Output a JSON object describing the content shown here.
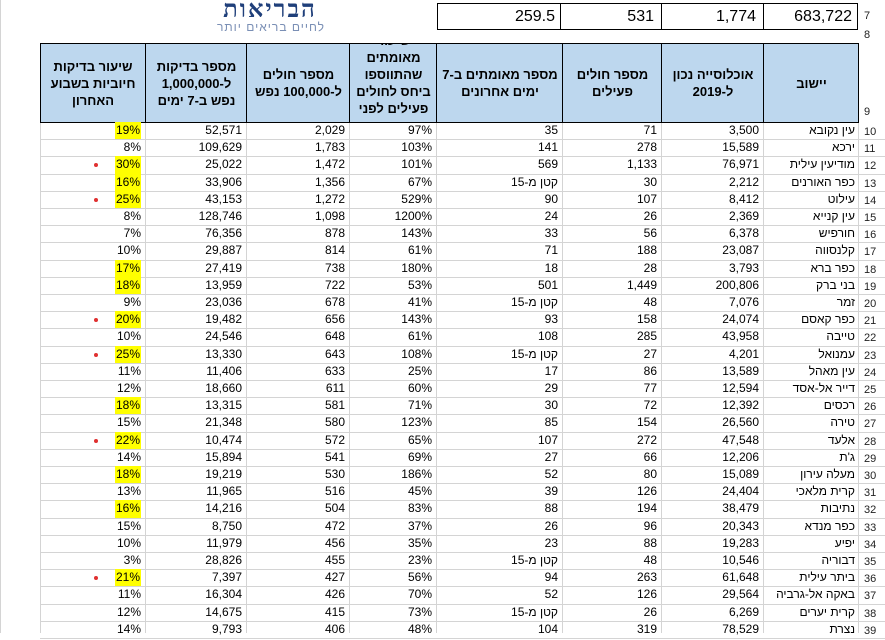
{
  "logo": {
    "title": "הבריאות",
    "subtitle": "לחיים בריאים יותר"
  },
  "top_row": {
    "row_num": "7",
    "values": [
      "683,722",
      "1,774",
      "531",
      "259.5"
    ]
  },
  "row8_num": "8",
  "header_row_num": "9",
  "headers": [
    "יישוב",
    "אוכלוסייה נכון ל-2019",
    "מספר חולים פעילים",
    "מספר מאומתים ב-7 ימים אחרונים",
    "שיעור מאומתים שהתווספו ביחס לחולים פעילים לפני שבוע",
    "מספר חולים ל-100,000 נפש",
    "מספר בדיקות ל-1,000,000 נפש ב-7 ימים",
    "שיעור בדיקות חיוביות בשבוע האחרון"
  ],
  "highlight_color": "#ffff00",
  "rows": [
    {
      "n": "10",
      "town": "עין נקובא",
      "pop": "3,500",
      "active": "71",
      "new7": "35",
      "rate": "97%",
      "per100k": "2,029",
      "tests": "52,571",
      "pos": "19%",
      "hl": true,
      "dot": false
    },
    {
      "n": "11",
      "town": "ירכא",
      "pop": "15,589",
      "active": "278",
      "new7": "141",
      "rate": "103%",
      "per100k": "1,783",
      "tests": "109,629",
      "pos": "8%",
      "hl": false,
      "dot": false
    },
    {
      "n": "12",
      "town": "מודיעין עילית",
      "pop": "76,971",
      "active": "1,133",
      "new7": "569",
      "rate": "101%",
      "per100k": "1,472",
      "tests": "25,022",
      "pos": "30%",
      "hl": true,
      "dot": true
    },
    {
      "n": "13",
      "town": "כפר האורנים",
      "pop": "2,212",
      "active": "30",
      "new7": "קטן מ-15",
      "rate": "67%",
      "per100k": "1,356",
      "tests": "33,906",
      "pos": "16%",
      "hl": true,
      "dot": false
    },
    {
      "n": "14",
      "town": "עילוט",
      "pop": "8,412",
      "active": "107",
      "new7": "90",
      "rate": "529%",
      "per100k": "1,272",
      "tests": "43,153",
      "pos": "25%",
      "hl": true,
      "dot": true
    },
    {
      "n": "15",
      "town": "עין קנייא",
      "pop": "2,369",
      "active": "26",
      "new7": "24",
      "rate": "1200%",
      "per100k": "1,098",
      "tests": "128,746",
      "pos": "8%",
      "hl": false,
      "dot": false
    },
    {
      "n": "16",
      "town": "חורפיש",
      "pop": "6,378",
      "active": "56",
      "new7": "33",
      "rate": "143%",
      "per100k": "878",
      "tests": "76,356",
      "pos": "7%",
      "hl": false,
      "dot": false
    },
    {
      "n": "17",
      "town": "קלנסווה",
      "pop": "23,087",
      "active": "188",
      "new7": "71",
      "rate": "61%",
      "per100k": "814",
      "tests": "29,887",
      "pos": "10%",
      "hl": false,
      "dot": false
    },
    {
      "n": "18",
      "town": "כפר ברא",
      "pop": "3,793",
      "active": "28",
      "new7": "18",
      "rate": "180%",
      "per100k": "738",
      "tests": "27,419",
      "pos": "17%",
      "hl": true,
      "dot": false
    },
    {
      "n": "19",
      "town": "בני ברק",
      "pop": "200,806",
      "active": "1,449",
      "new7": "501",
      "rate": "53%",
      "per100k": "722",
      "tests": "13,959",
      "pos": "18%",
      "hl": true,
      "dot": false
    },
    {
      "n": "20",
      "town": "זמר",
      "pop": "7,076",
      "active": "48",
      "new7": "קטן מ-15",
      "rate": "41%",
      "per100k": "678",
      "tests": "23,036",
      "pos": "9%",
      "hl": false,
      "dot": false
    },
    {
      "n": "21",
      "town": "כפר קאסם",
      "pop": "24,074",
      "active": "158",
      "new7": "93",
      "rate": "143%",
      "per100k": "656",
      "tests": "19,482",
      "pos": "20%",
      "hl": true,
      "dot": true
    },
    {
      "n": "22",
      "town": "טייבה",
      "pop": "43,958",
      "active": "285",
      "new7": "108",
      "rate": "61%",
      "per100k": "648",
      "tests": "24,546",
      "pos": "10%",
      "hl": false,
      "dot": false
    },
    {
      "n": "23",
      "town": "עמנואל",
      "pop": "4,201",
      "active": "27",
      "new7": "קטן מ-15",
      "rate": "108%",
      "per100k": "643",
      "tests": "13,330",
      "pos": "25%",
      "hl": true,
      "dot": true
    },
    {
      "n": "24",
      "town": "עין מאהל",
      "pop": "13,589",
      "active": "86",
      "new7": "17",
      "rate": "25%",
      "per100k": "633",
      "tests": "11,406",
      "pos": "11%",
      "hl": false,
      "dot": false
    },
    {
      "n": "25",
      "town": "דייר אל-אסד",
      "pop": "12,594",
      "active": "77",
      "new7": "29",
      "rate": "60%",
      "per100k": "611",
      "tests": "18,660",
      "pos": "12%",
      "hl": false,
      "dot": false
    },
    {
      "n": "26",
      "town": "רכסים",
      "pop": "12,392",
      "active": "72",
      "new7": "30",
      "rate": "71%",
      "per100k": "581",
      "tests": "13,315",
      "pos": "18%",
      "hl": true,
      "dot": false
    },
    {
      "n": "27",
      "town": "טירה",
      "pop": "26,560",
      "active": "154",
      "new7": "85",
      "rate": "123%",
      "per100k": "580",
      "tests": "21,348",
      "pos": "15%",
      "hl": false,
      "dot": false
    },
    {
      "n": "28",
      "town": "אלעד",
      "pop": "47,548",
      "active": "272",
      "new7": "107",
      "rate": "65%",
      "per100k": "572",
      "tests": "10,474",
      "pos": "22%",
      "hl": true,
      "dot": true
    },
    {
      "n": "29",
      "town": "ג'ת",
      "pop": "12,206",
      "active": "66",
      "new7": "27",
      "rate": "69%",
      "per100k": "541",
      "tests": "15,894",
      "pos": "14%",
      "hl": false,
      "dot": false
    },
    {
      "n": "30",
      "town": "מעלה עירון",
      "pop": "15,089",
      "active": "80",
      "new7": "52",
      "rate": "186%",
      "per100k": "530",
      "tests": "19,219",
      "pos": "18%",
      "hl": true,
      "dot": false
    },
    {
      "n": "31",
      "town": "קרית מלאכי",
      "pop": "24,404",
      "active": "126",
      "new7": "39",
      "rate": "45%",
      "per100k": "516",
      "tests": "11,965",
      "pos": "13%",
      "hl": false,
      "dot": false
    },
    {
      "n": "32",
      "town": "נתיבות",
      "pop": "38,479",
      "active": "194",
      "new7": "88",
      "rate": "83%",
      "per100k": "504",
      "tests": "14,216",
      "pos": "16%",
      "hl": true,
      "dot": false
    },
    {
      "n": "33",
      "town": "כפר מנדא",
      "pop": "20,343",
      "active": "96",
      "new7": "26",
      "rate": "37%",
      "per100k": "472",
      "tests": "8,750",
      "pos": "15%",
      "hl": false,
      "dot": false
    },
    {
      "n": "34",
      "town": "יפיע",
      "pop": "19,283",
      "active": "88",
      "new7": "23",
      "rate": "35%",
      "per100k": "456",
      "tests": "11,979",
      "pos": "10%",
      "hl": false,
      "dot": false
    },
    {
      "n": "35",
      "town": "דבוריה",
      "pop": "10,546",
      "active": "48",
      "new7": "קטן מ-15",
      "rate": "23%",
      "per100k": "455",
      "tests": "28,826",
      "pos": "3%",
      "hl": false,
      "dot": false
    },
    {
      "n": "36",
      "town": "ביתר עילית",
      "pop": "61,648",
      "active": "263",
      "new7": "94",
      "rate": "56%",
      "per100k": "427",
      "tests": "7,397",
      "pos": "21%",
      "hl": true,
      "dot": true
    },
    {
      "n": "37",
      "town": "באקה אל-גרביה",
      "pop": "29,564",
      "active": "126",
      "new7": "52",
      "rate": "70%",
      "per100k": "426",
      "tests": "16,304",
      "pos": "11%",
      "hl": false,
      "dot": false
    },
    {
      "n": "38",
      "town": "קרית יערים",
      "pop": "6,269",
      "active": "26",
      "new7": "קטן מ-15",
      "rate": "73%",
      "per100k": "415",
      "tests": "14,675",
      "pos": "12%",
      "hl": false,
      "dot": false
    },
    {
      "n": "39",
      "town": "נצרת",
      "pop": "78,529",
      "active": "319",
      "new7": "104",
      "rate": "48%",
      "per100k": "406",
      "tests": "9,793",
      "pos": "14%",
      "hl": false,
      "dot": false
    }
  ]
}
